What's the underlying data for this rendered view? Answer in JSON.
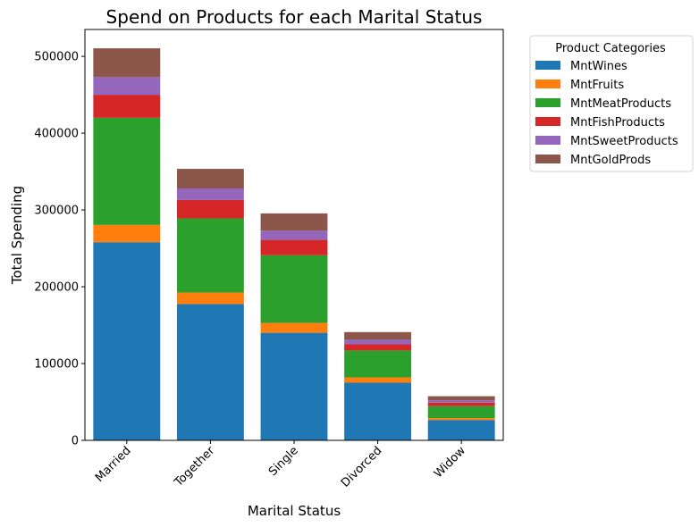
{
  "chart_data": {
    "type": "bar",
    "stacked": true,
    "title": "Spend on Products for each Marital Status",
    "xlabel": "Marital Status",
    "ylabel": "Total Spending",
    "ylim": [
      0,
      535000
    ],
    "yticks": [
      0,
      100000,
      200000,
      300000,
      400000,
      500000
    ],
    "categories": [
      "Married",
      "Together",
      "Single",
      "Divorced",
      "Widow"
    ],
    "series": [
      {
        "name": "MntWines",
        "color": "#1f77b4",
        "values": [
          258000,
          177500,
          140000,
          75000,
          26500
        ]
      },
      {
        "name": "MntFruits",
        "color": "#ff7f0e",
        "values": [
          22500,
          15000,
          13000,
          7000,
          2500
        ]
      },
      {
        "name": "MntMeatProducts",
        "color": "#2ca02c",
        "values": [
          139500,
          96500,
          88000,
          35000,
          15500
        ]
      },
      {
        "name": "MntFishProducts",
        "color": "#d62728",
        "values": [
          30000,
          24000,
          20000,
          8000,
          4500
        ]
      },
      {
        "name": "MntSweetProducts",
        "color": "#9467bd",
        "values": [
          23000,
          15000,
          12000,
          6000,
          3000
        ]
      },
      {
        "name": "MntGoldProds",
        "color": "#8c564b",
        "values": [
          37500,
          25500,
          22500,
          10000,
          5500
        ]
      }
    ],
    "legend": {
      "title": "Product Categories",
      "position": "outside-top-right"
    },
    "grid": false
  }
}
